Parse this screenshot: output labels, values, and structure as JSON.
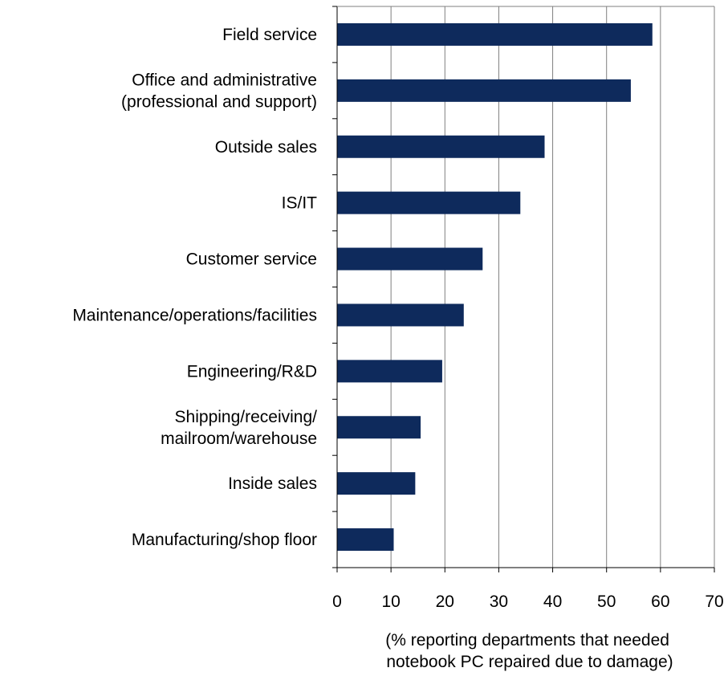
{
  "chart_data": {
    "type": "bar",
    "orientation": "horizontal",
    "categories": [
      [
        "Field service"
      ],
      [
        "Office and administrative",
        "(professional and support)"
      ],
      [
        "Outside sales"
      ],
      [
        "IS/IT"
      ],
      [
        "Customer service"
      ],
      [
        "Maintenance/operations/facilities"
      ],
      [
        "Engineering/R&D"
      ],
      [
        "Shipping/receiving/",
        "mailroom/warehouse"
      ],
      [
        "Inside sales"
      ],
      [
        "Manufacturing/shop floor"
      ]
    ],
    "values": [
      58.5,
      54.5,
      38.5,
      34,
      27,
      23.5,
      19.5,
      15.5,
      14.5,
      10.5
    ],
    "xlabel": [
      "(% reporting departments that needed",
      "notebook PC repaired due to damage)"
    ],
    "xlim": [
      0,
      70
    ],
    "xticks": [
      "0",
      "10",
      "20",
      "30",
      "40",
      "50",
      "60",
      "70"
    ],
    "grid": "vertical",
    "colors": {
      "bar": "#0e2a5c",
      "grid": "#7f7f7f",
      "axis": "#000000"
    }
  }
}
